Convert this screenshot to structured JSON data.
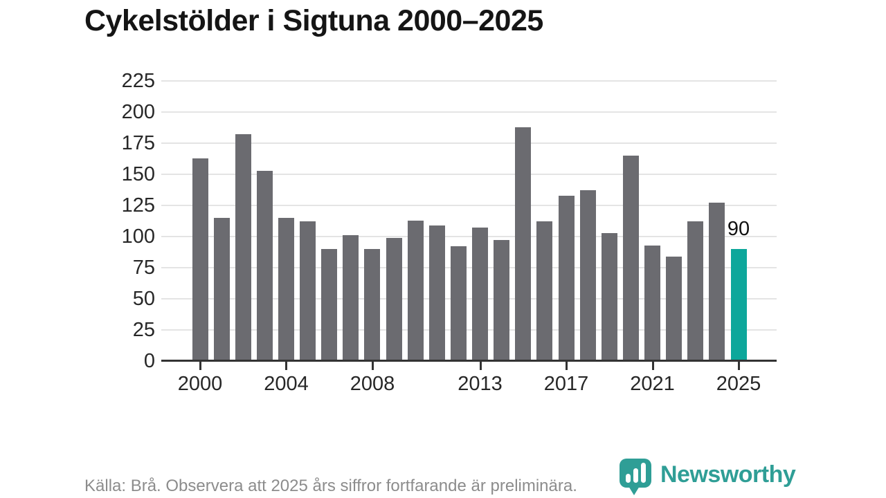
{
  "title": "Cykelstölder i Sigtuna 2000–2025",
  "footer": {
    "source_note": "Källa: Brå. Observera att 2025 års siffror fortfarande är preliminära."
  },
  "branding": {
    "logo_text": "Newsworthy"
  },
  "colors": {
    "title": "#151515",
    "bar_default": "#6b6b70",
    "bar_highlight": "#0da79b",
    "gridline": "#e4e4e4",
    "axis_line": "#333333",
    "axis_label": "#272727",
    "value_label": "#111111",
    "footer_text": "#8c8c8c",
    "logo": "#2f9e96"
  },
  "chart_data": {
    "type": "bar",
    "title": "Cykelstölder i Sigtuna 2000–2025",
    "x": [
      2000,
      2001,
      2002,
      2003,
      2004,
      2005,
      2006,
      2007,
      2008,
      2009,
      2010,
      2011,
      2012,
      2013,
      2014,
      2015,
      2016,
      2017,
      2018,
      2019,
      2020,
      2021,
      2022,
      2023,
      2024,
      2025
    ],
    "values": [
      163,
      115,
      182,
      153,
      115,
      112,
      90,
      101,
      90,
      99,
      113,
      109,
      92,
      107,
      97,
      188,
      112,
      133,
      137,
      103,
      165,
      93,
      84,
      112,
      127,
      90
    ],
    "highlight_year": 2025,
    "highlight_value_label": "90",
    "y_ticks": [
      0,
      25,
      50,
      75,
      100,
      125,
      150,
      175,
      200,
      225
    ],
    "x_tick_labels": [
      2000,
      2004,
      2008,
      2013,
      2017,
      2021,
      2025
    ],
    "ylim": [
      0,
      225
    ],
    "grid": "horizontal",
    "legend": "none"
  }
}
